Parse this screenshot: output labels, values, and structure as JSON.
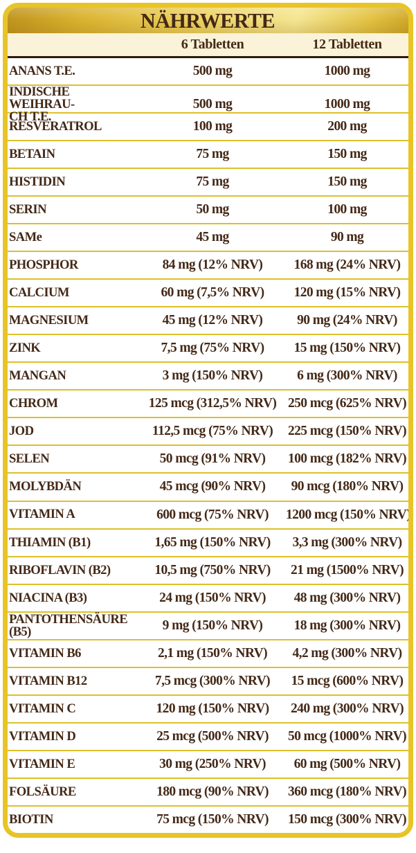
{
  "colors": {
    "border_gold": "#e8c426",
    "rule_yellow": "#ddc02a",
    "cream": "#fbf3d9",
    "dark_line": "#2d1b0c",
    "text_brown": "#442917",
    "header_gold_dark": "#c0931e",
    "header_gold_light": "#f5e693"
  },
  "header": {
    "title": "NÄHRWERTE"
  },
  "table": {
    "column_headers": [
      "6 Tabletten",
      "12 Tabletten"
    ],
    "rows": [
      {
        "label": "ANANS T.E.",
        "per_6": "500 mg",
        "per_12": "1000 mg"
      },
      {
        "label": "INDISCHE WEIHRAU-\nCH T.E.",
        "per_6": "500 mg",
        "per_12": "1000 mg"
      },
      {
        "label": "RESVERATROL",
        "per_6": "100 mg",
        "per_12": "200 mg"
      },
      {
        "label": "BETAIN",
        "per_6": "75 mg",
        "per_12": "150 mg"
      },
      {
        "label": "HISTIDIN",
        "per_6": "75 mg",
        "per_12": "150 mg"
      },
      {
        "label": "SERIN",
        "per_6": "50 mg",
        "per_12": "100 mg"
      },
      {
        "label": "SAMe",
        "per_6": "45 mg",
        "per_12": "90 mg"
      },
      {
        "label": "PHOSPHOR",
        "per_6": "84 mg (12% NRV)",
        "per_12": "168 mg (24% NRV)"
      },
      {
        "label": "CALCIUM",
        "per_6": "60 mg (7,5% NRV)",
        "per_12": "120 mg (15% NRV)"
      },
      {
        "label": "MAGNESIUM",
        "per_6": "45 mg (12% NRV)",
        "per_12": "90 mg (24% NRV)"
      },
      {
        "label": "ZINK",
        "per_6": "7,5 mg (75% NRV)",
        "per_12": "15 mg (150% NRV)"
      },
      {
        "label": "MANGAN",
        "per_6": "3 mg (150% NRV)",
        "per_12": "6 mg (300% NRV)"
      },
      {
        "label": "CHROM",
        "per_6": "125 mcg (312,5% NRV)",
        "per_12": "250 mcg (625% NRV)"
      },
      {
        "label": "JOD",
        "per_6": "112,5 mcg (75% NRV)",
        "per_12": "225 mcg (150% NRV)"
      },
      {
        "label": "SELEN",
        "per_6": "50 mcg (91% NRV)",
        "per_12": "100 mcg (182% NRV)"
      },
      {
        "label": "MOLYBDÄN",
        "per_6": "45 mcg (90% NRV)",
        "per_12": "90 mcg (180% NRV)"
      },
      {
        "label": "VITAMIN A",
        "per_6": "600 mcg (75% NRV)",
        "per_12": "1200 mcg (150% NRV)"
      },
      {
        "label": "THIAMIN (B1)",
        "per_6": "1,65 mg (150% NRV)",
        "per_12": "3,3 mg (300% NRV)"
      },
      {
        "label": "RIBOFLAVIN (B2)",
        "per_6": "10,5 mg (750% NRV)",
        "per_12": "21 mg (1500% NRV)"
      },
      {
        "label": "NIACINA (B3)",
        "per_6": "24 mg (150% NRV)",
        "per_12": "48 mg (300% NRV)"
      },
      {
        "label": "PANTOTHENSÄURE\n(B5)",
        "per_6": "9 mg (150% NRV)",
        "per_12": "18 mg (300% NRV)"
      },
      {
        "label": "VITAMIN B6",
        "per_6": "2,1 mg (150% NRV)",
        "per_12": "4,2 mg (300% NRV)"
      },
      {
        "label": "VITAMIN B12",
        "per_6": "7,5 mcg (300% NRV)",
        "per_12": "15 mcg (600% NRV)"
      },
      {
        "label": "VITAMIN C",
        "per_6": "120 mg (150% NRV)",
        "per_12": "240 mg (300% NRV)"
      },
      {
        "label": "VITAMIN D",
        "per_6": "25 mcg (500% NRV)",
        "per_12": "50 mcg (1000% NRV)"
      },
      {
        "label": "VITAMIN E",
        "per_6": "30 mg (250% NRV)",
        "per_12": "60 mg (500% NRV)"
      },
      {
        "label": "FOLSÄURE",
        "per_6": "180 mcg (90% NRV)",
        "per_12": "360 mcg (180% NRV)"
      },
      {
        "label": "BIOTIN",
        "per_6": "75 mcg (150% NRV)",
        "per_12": "150 mcg (300% NRV)"
      }
    ]
  }
}
